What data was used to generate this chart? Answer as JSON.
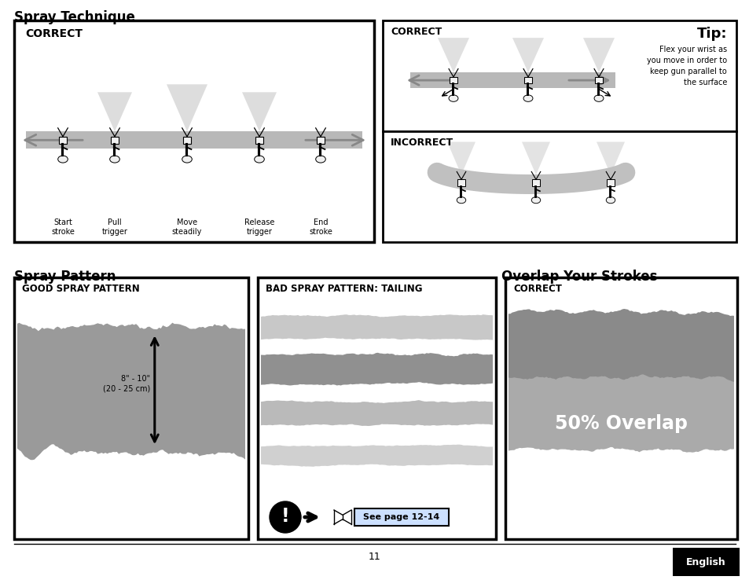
{
  "bg_color": "#ffffff",
  "page_number": "11",
  "section_spray_technique": "Spray Technique",
  "section_spray_pattern": "Spray Pattern",
  "section_overlap": "Overlap Your Strokes",
  "correct_label": "CORRECT",
  "incorrect_label": "INCORRECT",
  "good_spray_label": "GOOD SPRAY PATTERN",
  "bad_spray_label": "BAD SPRAY PATTERN: TAILING",
  "overlap_correct_label": "CORRECT",
  "tip_title": "Tip:",
  "tip_text": "Flex your wrist as\nyou move in order to\nkeep gun parallel to\nthe surface",
  "size_label": "8\" - 10\"\n(20 - 25 cm)",
  "see_page_label": "See page 12-14",
  "overlap_label": "50% Overlap",
  "english_label": "English"
}
